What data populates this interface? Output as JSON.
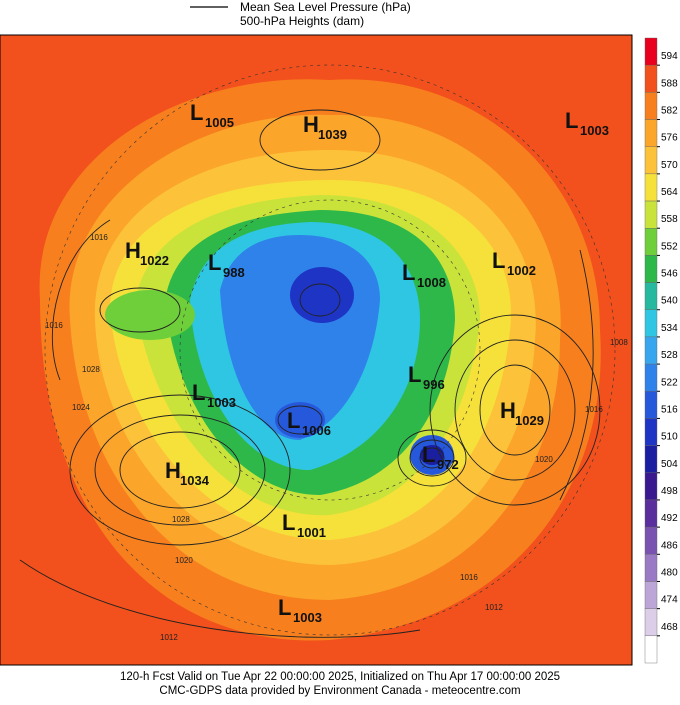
{
  "header": {
    "legend": [
      "Mean Sea Level Pressure (hPa)",
      "500-hPa Heights (dam)"
    ]
  },
  "colorbar": {
    "ticks": [
      594,
      588,
      582,
      576,
      570,
      564,
      558,
      552,
      546,
      540,
      534,
      528,
      522,
      516,
      510,
      504,
      498,
      492,
      486,
      480,
      474,
      468
    ],
    "colors": [
      "#e8001e",
      "#f2501c",
      "#f77f1e",
      "#fba52a",
      "#fcc33a",
      "#f6e13a",
      "#c9e33a",
      "#6fcf3a",
      "#2fb84a",
      "#27b8a0",
      "#2fc6e4",
      "#38a6ee",
      "#2f82ea",
      "#2658dc",
      "#1e34c4",
      "#1a1ea0",
      "#3a1890",
      "#5a2e9c",
      "#7a52b0",
      "#9a7ac4",
      "#bca6d8",
      "#dccde8",
      "#ffffff"
    ]
  },
  "centers": [
    {
      "type": "L",
      "value": 1005
    },
    {
      "type": "H",
      "value": 1039
    },
    {
      "type": "L",
      "value": 1003
    },
    {
      "type": "H",
      "value": 1022
    },
    {
      "type": "L",
      "value": 988
    },
    {
      "type": "L",
      "value": 1008
    },
    {
      "type": "L",
      "value": 1002
    },
    {
      "type": "L",
      "value": 1003
    },
    {
      "type": "L",
      "value": 996
    },
    {
      "type": "L",
      "value": 1006
    },
    {
      "type": "H",
      "value": 1029
    },
    {
      "type": "H",
      "value": 1034
    },
    {
      "type": "L",
      "value": 972
    },
    {
      "type": "L",
      "value": 1001
    },
    {
      "type": "L",
      "value": 1003
    }
  ],
  "isobar_labels": [
    1016,
    1016,
    1028,
    1024,
    1028,
    1020,
    1016,
    1012,
    1020,
    1016,
    1012,
    1008
  ],
  "footer": [
    "120-h Fcst Valid on Tue Apr 22 00:00:00 2025, Initialized on Thu Apr 17 00:00:00 2025",
    "CMC-GDPS data provided by Environment Canada - meteocentre.com"
  ]
}
